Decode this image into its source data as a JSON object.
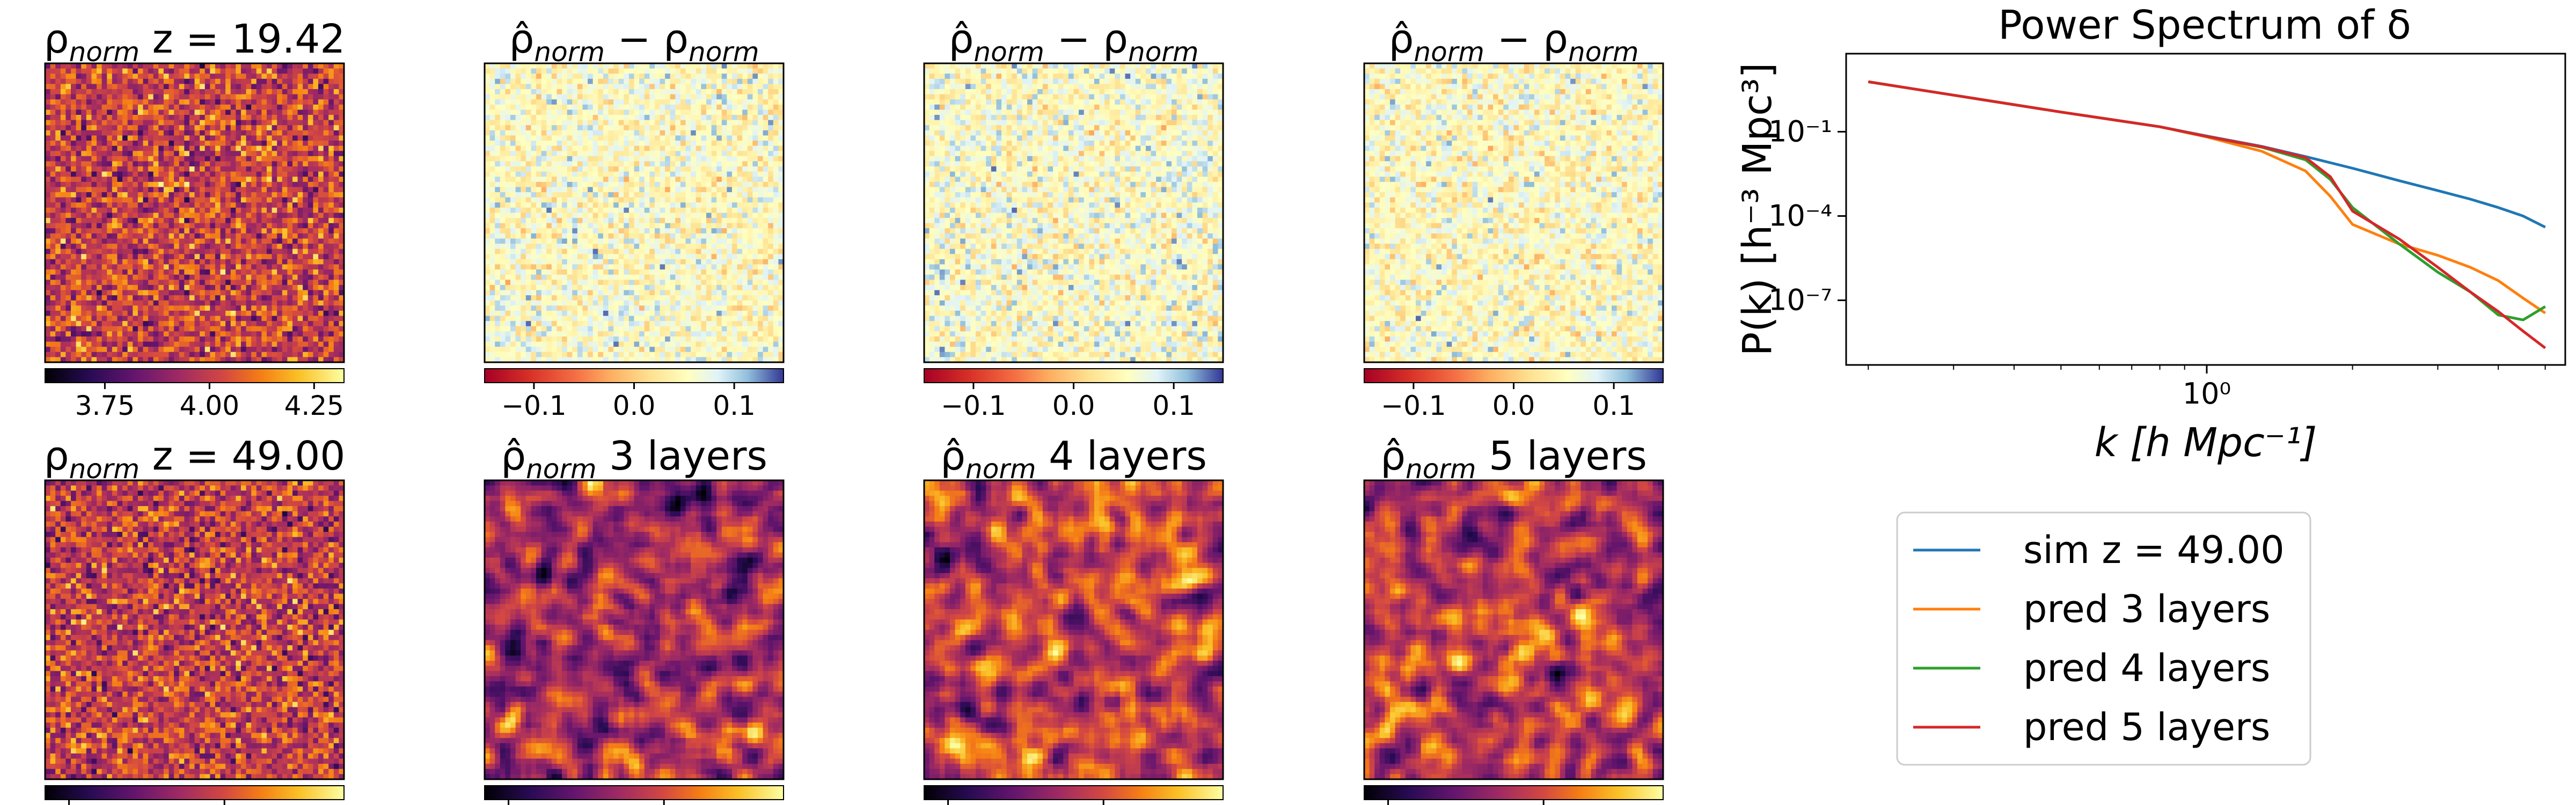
{
  "panels": {
    "top": [
      {
        "title_parts": [
          [
            "ρ",
            "n"
          ],
          [
            "norm",
            "s"
          ],
          [
            " z = 19.42",
            "n"
          ]
        ],
        "cmap": "inferno",
        "seed": 11,
        "smooth": 0,
        "cbar": "inferno",
        "cbar_ticks": [
          "3.75",
          "4.00",
          "4.25"
        ]
      },
      {
        "title_parts": [
          [
            "ρ̂",
            "n"
          ],
          [
            "norm",
            "s"
          ],
          [
            " − ρ",
            "n"
          ],
          [
            "norm",
            "s"
          ]
        ],
        "cmap": "rdylbu",
        "seed": 23,
        "smooth": 0,
        "cbar": "rdylbu",
        "cbar_ticks": [
          "−0.1",
          "0.0",
          "0.1"
        ]
      },
      {
        "title_parts": [
          [
            "ρ̂",
            "n"
          ],
          [
            "norm",
            "s"
          ],
          [
            " − ρ",
            "n"
          ],
          [
            "norm",
            "s"
          ]
        ],
        "cmap": "rdylbu",
        "seed": 37,
        "smooth": 0,
        "cbar": "rdylbu",
        "cbar_ticks": [
          "−0.1",
          "0.0",
          "0.1"
        ]
      },
      {
        "title_parts": [
          [
            "ρ̂",
            "n"
          ],
          [
            "norm",
            "s"
          ],
          [
            " − ρ",
            "n"
          ],
          [
            "norm",
            "s"
          ]
        ],
        "cmap": "rdylbu",
        "seed": 41,
        "smooth": 0,
        "cbar": "rdylbu",
        "cbar_ticks": [
          "−0.1",
          "0.0",
          "0.1"
        ]
      }
    ],
    "bottom": [
      {
        "title_parts": [
          [
            "ρ",
            "n"
          ],
          [
            "norm",
            "s"
          ],
          [
            " z = 49.00",
            "n"
          ]
        ],
        "cmap": "inferno",
        "seed": 53,
        "smooth": 0,
        "cbar": "inferno"
      },
      {
        "title_parts": [
          [
            "ρ̂",
            "n"
          ],
          [
            "norm",
            "s"
          ],
          [
            " 3 layers",
            "n"
          ]
        ],
        "cmap": "inferno",
        "seed": 67,
        "smooth": 2,
        "cbar": "inferno"
      },
      {
        "title_parts": [
          [
            "ρ̂",
            "n"
          ],
          [
            "norm",
            "s"
          ],
          [
            " 4 layers",
            "n"
          ]
        ],
        "cmap": "inferno",
        "seed": 71,
        "smooth": 2,
        "cbar": "inferno"
      },
      {
        "title_parts": [
          [
            "ρ̂",
            "n"
          ],
          [
            "norm",
            "s"
          ],
          [
            " 5 layers",
            "n"
          ]
        ],
        "cmap": "inferno",
        "seed": 83,
        "smooth": 2,
        "cbar": "inferno"
      }
    ]
  },
  "chart_data": {
    "type": "line",
    "title": "Power Spectrum of δ",
    "xlabel": "k [h Mpc⁻¹]",
    "ylabel": "P(k) [h⁻³ Mpc³]",
    "xscale": "log",
    "yscale": "log",
    "xlim": [
      0.18,
      5.5
    ],
    "ylim": [
      5e-10,
      60
    ],
    "xticks": [
      {
        "value": 1,
        "label": "10⁰"
      }
    ],
    "yticks": [
      {
        "value": 0.1,
        "label": "10⁻¹"
      },
      {
        "value": 0.0001,
        "label": "10⁻⁴"
      },
      {
        "value": 1e-07,
        "label": "10⁻⁷"
      }
    ],
    "series": [
      {
        "name": "sim z = 49.00",
        "color": "#1f77b4",
        "x": [
          0.2,
          0.3,
          0.5,
          0.8,
          1.0,
          1.3,
          1.6,
          2.0,
          2.5,
          3.0,
          3.5,
          4.0,
          4.5,
          5.0
        ],
        "y": [
          6.0,
          2.0,
          0.5,
          0.15,
          0.07,
          0.03,
          0.013,
          0.005,
          0.0018,
          0.0008,
          0.0004,
          0.0002,
          0.0001,
          4e-05
        ]
      },
      {
        "name": "pred 3 layers",
        "color": "#ff7f0e",
        "x": [
          0.2,
          0.3,
          0.5,
          0.8,
          1.0,
          1.3,
          1.6,
          1.8,
          2.0,
          2.5,
          3.0,
          3.5,
          4.0,
          4.5,
          5.0
        ],
        "y": [
          6.0,
          2.0,
          0.5,
          0.15,
          0.065,
          0.02,
          0.004,
          0.0005,
          5e-05,
          1e-05,
          4e-06,
          1.5e-06,
          5e-07,
          1.2e-07,
          3.5e-08
        ]
      },
      {
        "name": "pred 4 layers",
        "color": "#2ca02c",
        "x": [
          0.2,
          0.3,
          0.5,
          0.8,
          1.0,
          1.3,
          1.6,
          1.8,
          2.0,
          2.5,
          3.0,
          3.5,
          4.0,
          4.5,
          5.0
        ],
        "y": [
          6.0,
          2.0,
          0.5,
          0.15,
          0.068,
          0.028,
          0.01,
          0.002,
          0.0002,
          1e-05,
          1e-06,
          2e-07,
          3e-08,
          2e-08,
          6e-08
        ]
      },
      {
        "name": "pred 5 layers",
        "color": "#d62728",
        "x": [
          0.2,
          0.3,
          0.5,
          0.8,
          1.0,
          1.3,
          1.6,
          1.8,
          2.0,
          2.5,
          3.0,
          3.5,
          4.0,
          4.5,
          5.0
        ],
        "y": [
          6.0,
          2.0,
          0.5,
          0.15,
          0.068,
          0.029,
          0.012,
          0.0025,
          0.00015,
          1.5e-05,
          1.5e-06,
          2e-07,
          4e-08,
          8e-09,
          2e-09
        ]
      }
    ],
    "legend_position": "below"
  }
}
